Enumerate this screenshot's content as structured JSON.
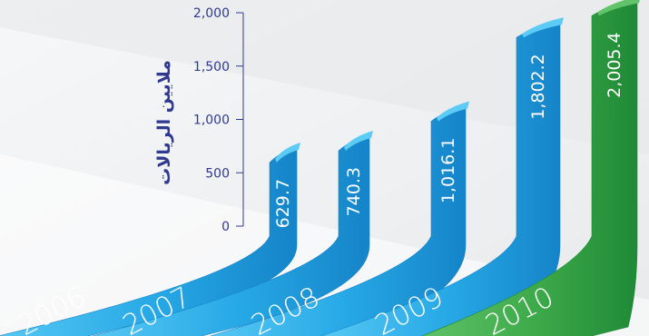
{
  "chart_data": {
    "type": "bar",
    "categories": [
      "2006",
      "2007",
      "2008",
      "2009",
      "2010"
    ],
    "values": [
      629.7,
      740.3,
      1016.1,
      1802.2,
      2005.4
    ],
    "value_labels": [
      "629.7",
      "740.3",
      "1,016.1",
      "1,802.2",
      "2,005.4"
    ],
    "ylabel": "ملايين الريالات",
    "ylim": [
      0,
      2000
    ],
    "yticks": [
      0,
      500,
      1000,
      1500,
      2000
    ],
    "ytick_labels": [
      "0",
      "500",
      "1,000",
      "1,500",
      "2,000"
    ],
    "grid": false,
    "colors": {
      "bar": "#27a9e6",
      "bar_light": "#5ccbf5",
      "bar_dark": "#1584c8",
      "highlight": "#3daa4a",
      "highlight_light": "#62c46a",
      "highlight_dark": "#1f8a36",
      "axis": "#2f3a8f",
      "text": "#2f3a8f"
    }
  }
}
